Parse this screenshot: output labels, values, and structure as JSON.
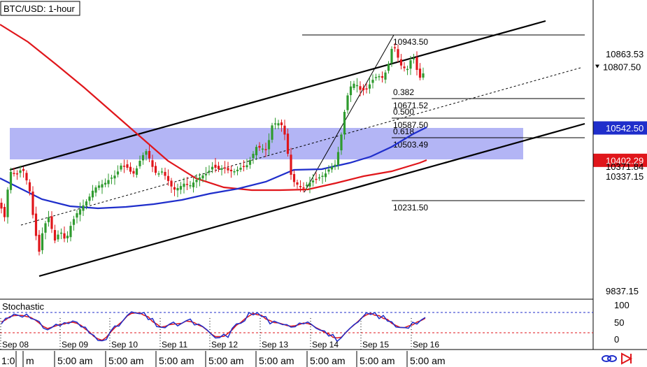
{
  "chart_data": {
    "type": "candlestick",
    "title": "BTC/USD: 1-hour",
    "price_axis": {
      "ticks": [
        {
          "label": "10863.53",
          "value": 10863.53,
          "badge": true,
          "bg": "#ffffff",
          "fg": "#000000"
        },
        {
          "label": "10807.50",
          "value": 10807.5,
          "badge": true,
          "bg": "#ffffff",
          "fg": "#000000",
          "marker": true
        },
        {
          "label": "10542.50",
          "value": 10542.5,
          "badge": true,
          "bg": "#1f2ecb",
          "fg": "#ffffff"
        },
        {
          "label": "10402.29",
          "value": 10402.29,
          "badge": true,
          "bg": "#e0161b",
          "fg": "#ffffff"
        },
        {
          "label": "10371.84",
          "value": 10371.84,
          "badge": false
        },
        {
          "label": "10337.15",
          "value": 10337.15,
          "badge": false
        },
        {
          "label": "9837.15",
          "value": 9837.15,
          "badge": false
        }
      ]
    },
    "time_axis": {
      "date_labels": [
        "Sep 08",
        "Sep 09",
        "Sep 10",
        "Sep 11",
        "Sep 12",
        "Sep 13",
        "Sep 14",
        "Sep 15",
        "Sep 16"
      ],
      "bottom_labels": [
        "1:0",
        "m",
        "5:00 am",
        "5:00 am",
        "5:00 am",
        "5:00 am",
        "5:00 am",
        "5:00 am",
        "5:00 am",
        "5:00 am"
      ]
    },
    "fibonacci": {
      "levels": [
        {
          "ratio_label": "",
          "price_label": "10943.50",
          "value": 10943.5
        },
        {
          "ratio_label": "0.382",
          "price_label": "10671.52",
          "value": 10671.52
        },
        {
          "ratio_label": "0.500",
          "price_label": "10587.50",
          "value": 10587.5
        },
        {
          "ratio_label": "0.618",
          "price_label": "10503.49",
          "value": 10503.49
        },
        {
          "ratio_label": "",
          "price_label": "10231.50",
          "value": 10231.5
        }
      ]
    },
    "stochastic": {
      "label": "Stochastic",
      "axis_ticks": [
        "100",
        "50",
        "0"
      ],
      "overbought": 80,
      "oversold": 20
    },
    "colors": {
      "bull": "#2f9b2f",
      "bear": "#e0161b",
      "ma_fast": "#1f2ecb",
      "ma_slow": "#e0161b",
      "zone": "#9a9cf2",
      "channel": "#000000",
      "stoch_k": "#1f2ecb",
      "stoch_d": "#e0161b"
    },
    "icons": [
      "link-icon",
      "arrow-icon"
    ]
  }
}
